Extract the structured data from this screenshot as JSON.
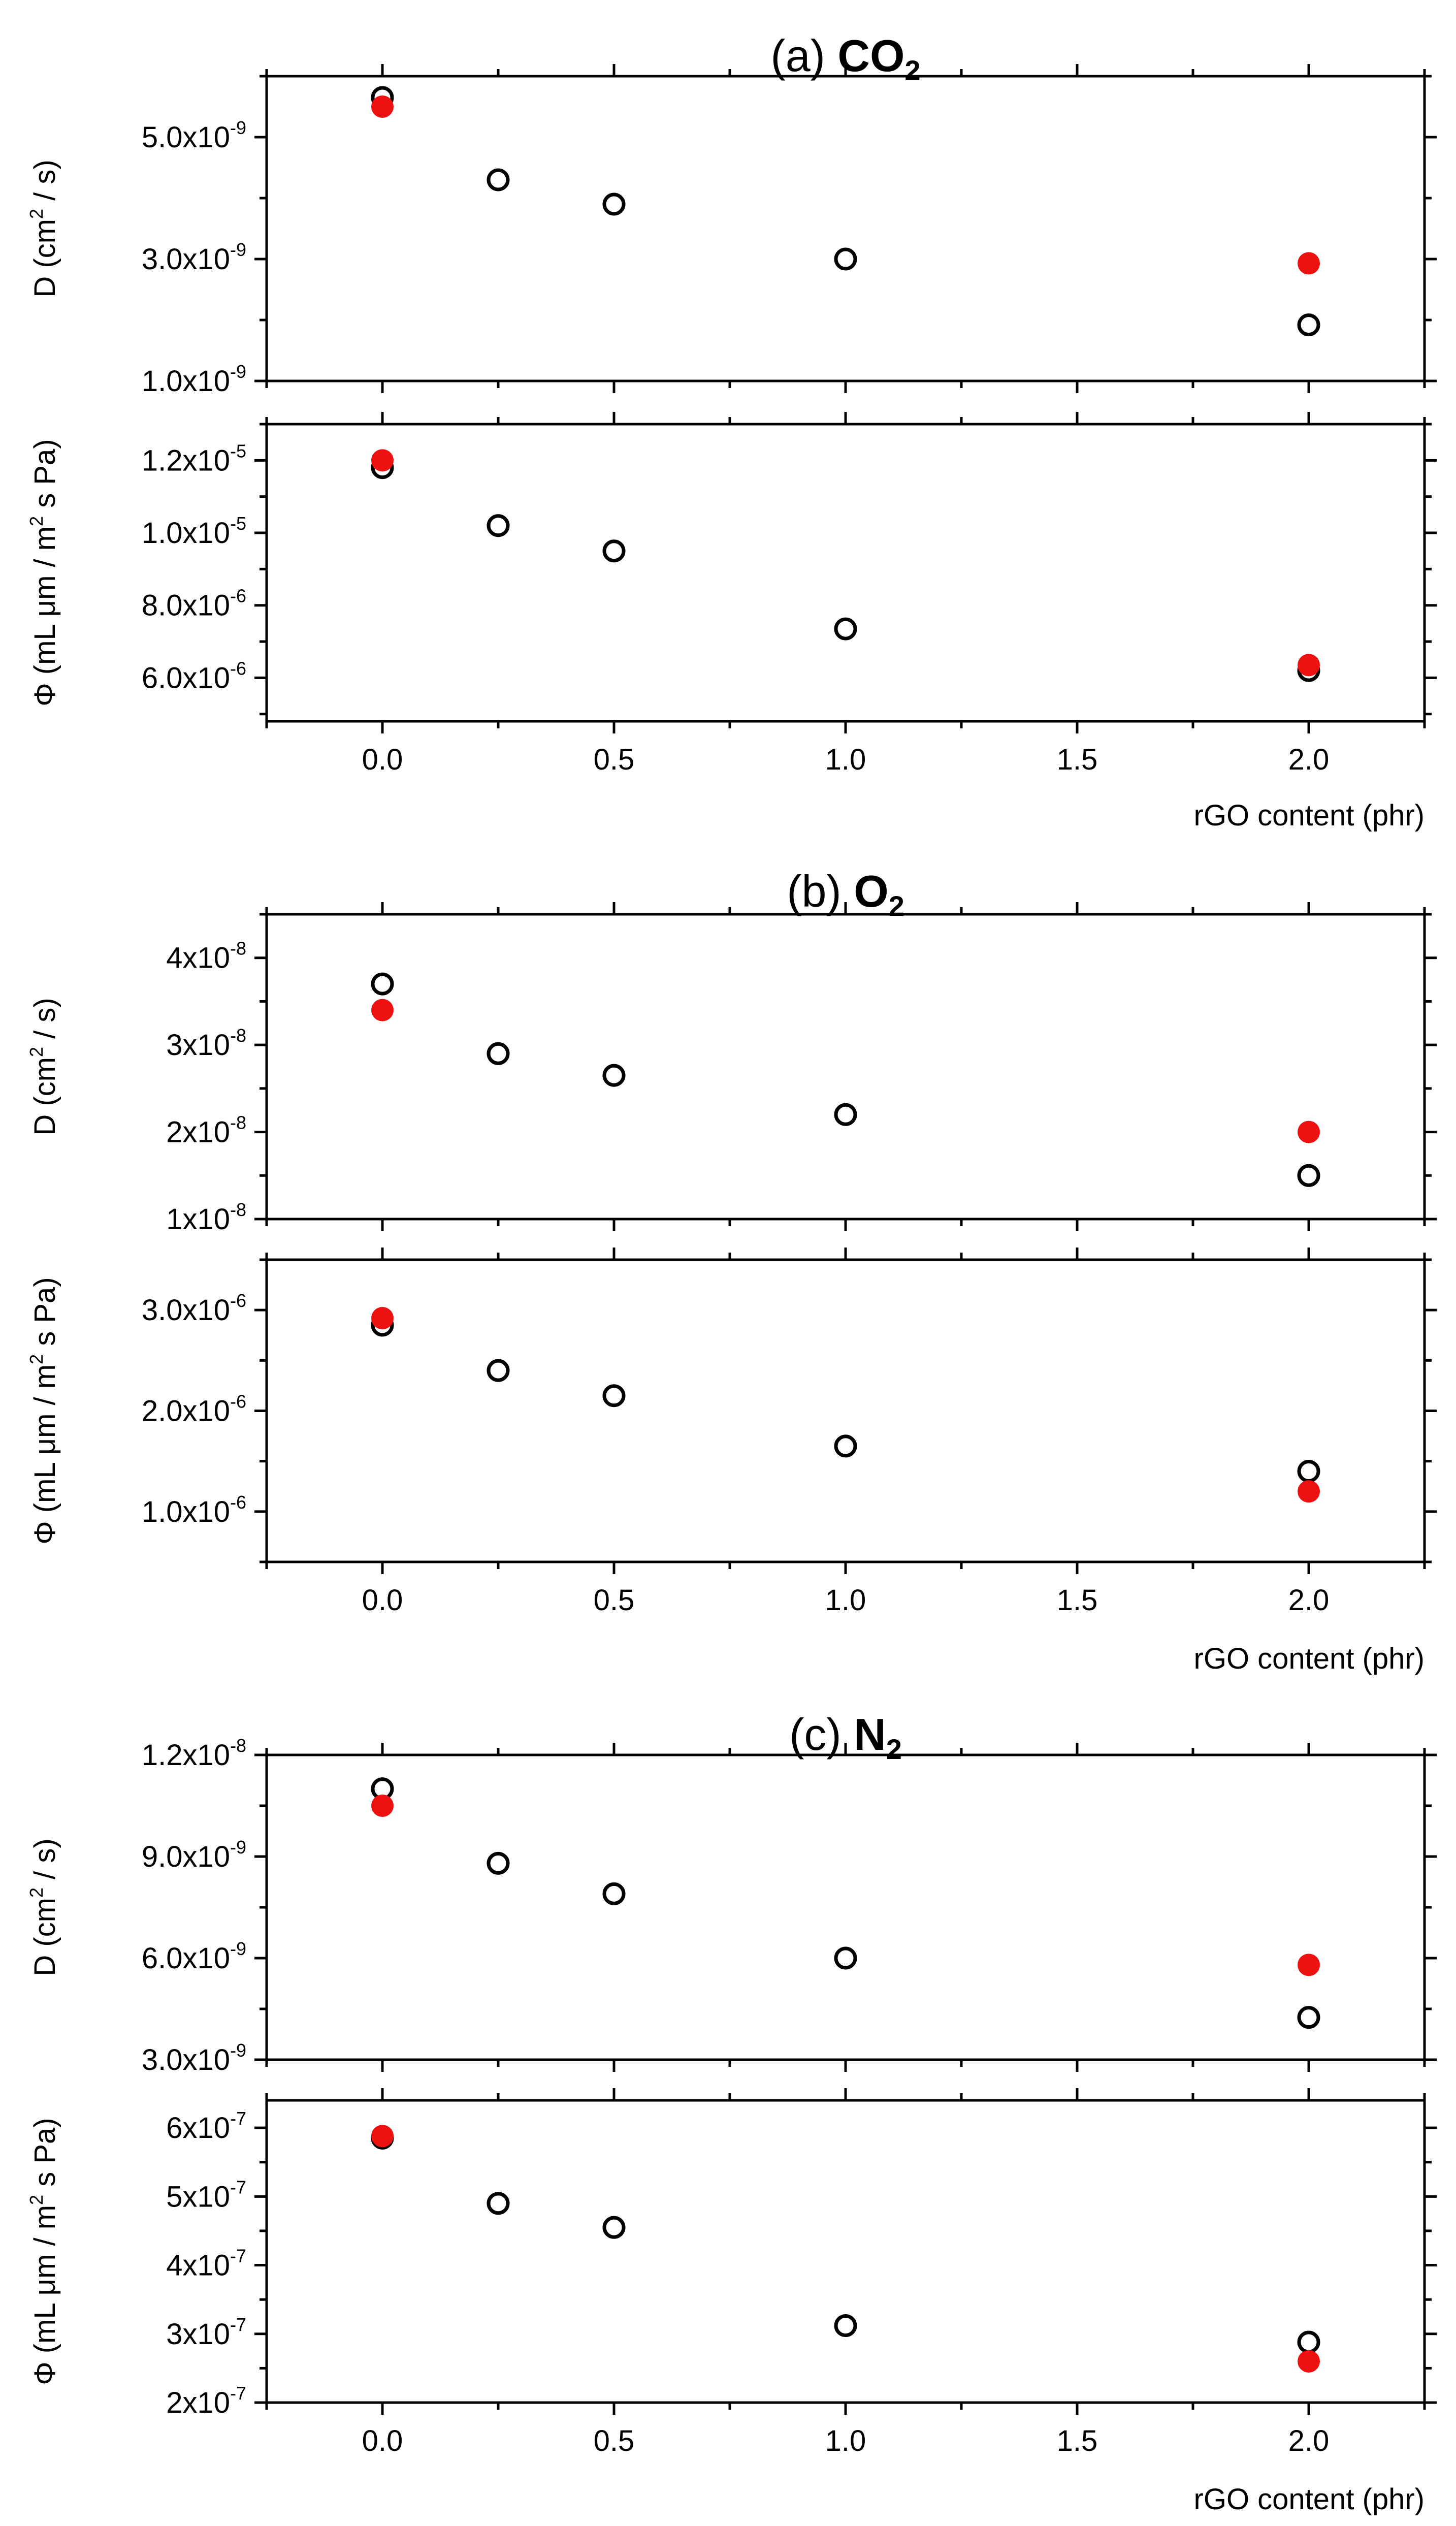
{
  "colors": {
    "measured_marker_edge": "#000000",
    "model_marker_fill": "#ee1111",
    "axes": "#000000"
  },
  "chart_data": [
    {
      "type": "scatter",
      "panel": "a",
      "title": {
        "prefix": "(a)",
        "gas": "CO",
        "sub": "2"
      },
      "xlabel": "rGO content (phr)",
      "xlim": [
        -0.25,
        2.25
      ],
      "x_ticks": [
        {
          "v": 0.0,
          "label": "0.0"
        },
        {
          "v": 0.5,
          "label": "0.5"
        },
        {
          "v": 1.0,
          "label": "1.0"
        },
        {
          "v": 1.5,
          "label": "1.5"
        },
        {
          "v": 2.0,
          "label": "2.0"
        }
      ],
      "subplots": [
        {
          "quantity": "D",
          "ylabel": {
            "symbol": "D",
            "unit_open": "(cm",
            "unit_sup": "2",
            "unit_close": " / s)"
          },
          "ylim": [
            1e-09,
            6e-09
          ],
          "y_ticks": [
            {
              "v": 1e-09,
              "mant": "1.0x10",
              "exp": "-9"
            },
            {
              "v": 3e-09,
              "mant": "3.0x10",
              "exp": "-9"
            },
            {
              "v": 5e-09,
              "mant": "5.0x10",
              "exp": "-9"
            }
          ],
          "series": [
            {
              "name": "measured (open circles)",
              "style": "open",
              "points": [
                [
                  0.0,
                  5.65e-09
                ],
                [
                  0.25,
                  4.3e-09
                ],
                [
                  0.5,
                  3.9e-09
                ],
                [
                  1.0,
                  3e-09
                ],
                [
                  2.0,
                  1.92e-09
                ]
              ]
            },
            {
              "name": "predicted (filled red circles)",
              "style": "filled",
              "points": [
                [
                  0.0,
                  5.5e-09
                ],
                [
                  2.0,
                  2.93e-09
                ]
              ]
            }
          ]
        },
        {
          "quantity": "Phi",
          "ylabel": {
            "symbol": "Φ",
            "unit_open": "(mL μm / m",
            "unit_sup": "2",
            "unit_close": " s Pa)"
          },
          "ylim": [
            4.8e-06,
            1.3e-05
          ],
          "y_ticks": [
            {
              "v": 6e-06,
              "mant": "6.0x10",
              "exp": "-6"
            },
            {
              "v": 8e-06,
              "mant": "8.0x10",
              "exp": "-6"
            },
            {
              "v": 1e-05,
              "mant": "1.0x10",
              "exp": "-5"
            },
            {
              "v": 1.2e-05,
              "mant": "1.2x10",
              "exp": "-5"
            }
          ],
          "series": [
            {
              "name": "measured (open circles)",
              "style": "open",
              "points": [
                [
                  0.0,
                  1.18e-05
                ],
                [
                  0.25,
                  1.02e-05
                ],
                [
                  0.5,
                  9.5e-06
                ],
                [
                  1.0,
                  7.35e-06
                ],
                [
                  2.0,
                  6.2e-06
                ]
              ]
            },
            {
              "name": "predicted (filled red circles)",
              "style": "filled",
              "points": [
                [
                  0.0,
                  1.2e-05
                ],
                [
                  2.0,
                  6.35e-06
                ]
              ]
            }
          ]
        }
      ]
    },
    {
      "type": "scatter",
      "panel": "b",
      "title": {
        "prefix": "(b)",
        "gas": "O",
        "sub": "2"
      },
      "xlabel": "rGO content (phr)",
      "xlim": [
        -0.25,
        2.25
      ],
      "x_ticks": [
        {
          "v": 0.0,
          "label": "0.0"
        },
        {
          "v": 0.5,
          "label": "0.5"
        },
        {
          "v": 1.0,
          "label": "1.0"
        },
        {
          "v": 1.5,
          "label": "1.5"
        },
        {
          "v": 2.0,
          "label": "2.0"
        }
      ],
      "subplots": [
        {
          "quantity": "D",
          "ylabel": {
            "symbol": "D",
            "unit_open": "(cm",
            "unit_sup": "2",
            "unit_close": " / s)"
          },
          "ylim": [
            1e-08,
            4.5e-08
          ],
          "y_ticks": [
            {
              "v": 1e-08,
              "mant": "1x10",
              "exp": "-8"
            },
            {
              "v": 2e-08,
              "mant": "2x10",
              "exp": "-8"
            },
            {
              "v": 3e-08,
              "mant": "3x10",
              "exp": "-8"
            },
            {
              "v": 4e-08,
              "mant": "4x10",
              "exp": "-8"
            }
          ],
          "series": [
            {
              "name": "measured (open circles)",
              "style": "open",
              "points": [
                [
                  0.0,
                  3.7e-08
                ],
                [
                  0.25,
                  2.9e-08
                ],
                [
                  0.5,
                  2.65e-08
                ],
                [
                  1.0,
                  2.2e-08
                ],
                [
                  2.0,
                  1.5e-08
                ]
              ]
            },
            {
              "name": "predicted (filled red circles)",
              "style": "filled",
              "points": [
                [
                  0.0,
                  3.4e-08
                ],
                [
                  2.0,
                  2e-08
                ]
              ]
            }
          ]
        },
        {
          "quantity": "Phi",
          "ylabel": {
            "symbol": "Φ",
            "unit_open": "(mL μm / m",
            "unit_sup": "2",
            "unit_close": " s Pa)"
          },
          "ylim": [
            5e-07,
            3.5e-06
          ],
          "y_ticks": [
            {
              "v": 1e-06,
              "mant": "1.0x10",
              "exp": "-6"
            },
            {
              "v": 2e-06,
              "mant": "2.0x10",
              "exp": "-6"
            },
            {
              "v": 3e-06,
              "mant": "3.0x10",
              "exp": "-6"
            }
          ],
          "series": [
            {
              "name": "measured (open circles)",
              "style": "open",
              "points": [
                [
                  0.0,
                  2.85e-06
                ],
                [
                  0.25,
                  2.4e-06
                ],
                [
                  0.5,
                  2.15e-06
                ],
                [
                  1.0,
                  1.65e-06
                ],
                [
                  2.0,
                  1.4e-06
                ]
              ]
            },
            {
              "name": "predicted (filled red circles)",
              "style": "filled",
              "points": [
                [
                  0.0,
                  2.92e-06
                ],
                [
                  2.0,
                  1.2e-06
                ]
              ]
            }
          ]
        }
      ]
    },
    {
      "type": "scatter",
      "panel": "c",
      "title": {
        "prefix": "(c)",
        "gas": "N",
        "sub": "2"
      },
      "xlabel": "rGO content (phr)",
      "xlim": [
        -0.25,
        2.25
      ],
      "x_ticks": [
        {
          "v": 0.0,
          "label": "0.0"
        },
        {
          "v": 0.5,
          "label": "0.5"
        },
        {
          "v": 1.0,
          "label": "1.0"
        },
        {
          "v": 1.5,
          "label": "1.5"
        },
        {
          "v": 2.0,
          "label": "2.0"
        }
      ],
      "subplots": [
        {
          "quantity": "D",
          "ylabel": {
            "symbol": "D",
            "unit_open": "(cm",
            "unit_sup": "2",
            "unit_close": " / s)"
          },
          "ylim": [
            3e-09,
            1.2e-08
          ],
          "y_ticks": [
            {
              "v": 3e-09,
              "mant": "3.0x10",
              "exp": "-9"
            },
            {
              "v": 6e-09,
              "mant": "6.0x10",
              "exp": "-9"
            },
            {
              "v": 9e-09,
              "mant": "9.0x10",
              "exp": "-9"
            },
            {
              "v": 1.2e-08,
              "mant": "1.2x10",
              "exp": "-8"
            }
          ],
          "series": [
            {
              "name": "measured (open circles)",
              "style": "open",
              "points": [
                [
                  0.0,
                  1.1e-08
                ],
                [
                  0.25,
                  8.8e-09
                ],
                [
                  0.5,
                  7.9e-09
                ],
                [
                  1.0,
                  6e-09
                ],
                [
                  2.0,
                  4.25e-09
                ]
              ]
            },
            {
              "name": "predicted (filled red circles)",
              "style": "filled",
              "points": [
                [
                  0.0,
                  1.05e-08
                ],
                [
                  2.0,
                  5.8e-09
                ]
              ]
            }
          ]
        },
        {
          "quantity": "Phi",
          "ylabel": {
            "symbol": "Φ",
            "unit_open": "(mL μm / m",
            "unit_sup": "2",
            "unit_close": " s Pa)"
          },
          "ylim": [
            2e-07,
            6.4e-07
          ],
          "y_ticks": [
            {
              "v": 2e-07,
              "mant": "2x10",
              "exp": "-7"
            },
            {
              "v": 3e-07,
              "mant": "3x10",
              "exp": "-7"
            },
            {
              "v": 4e-07,
              "mant": "4x10",
              "exp": "-7"
            },
            {
              "v": 5e-07,
              "mant": "5x10",
              "exp": "-7"
            },
            {
              "v": 6e-07,
              "mant": "6x10",
              "exp": "-7"
            }
          ],
          "series": [
            {
              "name": "measured (open circles)",
              "style": "open",
              "points": [
                [
                  0.0,
                  5.85e-07
                ],
                [
                  0.25,
                  4.9e-07
                ],
                [
                  0.5,
                  4.55e-07
                ],
                [
                  1.0,
                  3.12e-07
                ],
                [
                  2.0,
                  2.88e-07
                ]
              ]
            },
            {
              "name": "predicted (filled red circles)",
              "style": "filled",
              "points": [
                [
                  0.0,
                  5.88e-07
                ],
                [
                  2.0,
                  2.6e-07
                ]
              ]
            }
          ]
        }
      ]
    }
  ]
}
